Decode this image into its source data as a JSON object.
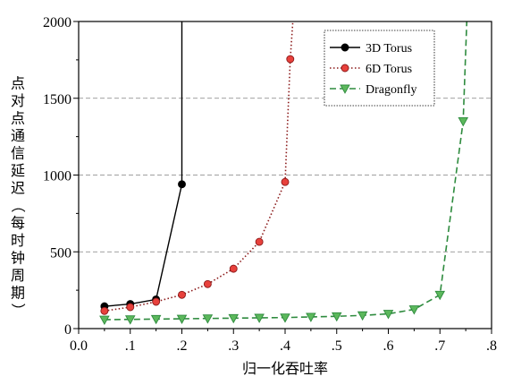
{
  "chart_data": {
    "type": "line",
    "title": "",
    "xlabel": "归一化吞吐率",
    "ylabel": "点对点通信延迟（每时钟周期）",
    "xlim": [
      0.0,
      0.8
    ],
    "ylim": [
      0,
      2000
    ],
    "x_ticks": [
      0.0,
      0.1,
      0.2,
      0.3,
      0.4,
      0.5,
      0.6,
      0.7,
      0.8
    ],
    "x_tick_labels": [
      "0.0",
      ".1",
      ".2",
      ".3",
      ".4",
      ".5",
      ".6",
      ".7",
      ".8"
    ],
    "y_ticks": [
      0,
      500,
      1000,
      1500,
      2000
    ],
    "y_tick_labels": [
      "0",
      "500",
      "1000",
      "1500",
      "2000"
    ],
    "grid": "horizontal dashed",
    "legend_position": "top-right",
    "series": [
      {
        "name": "3D Torus",
        "color": "#000000",
        "line_style": "solid",
        "marker": "circle",
        "marker_fill": "#000000",
        "x": [
          0.05,
          0.1,
          0.15,
          0.2
        ],
        "y": [
          145,
          160,
          190,
          940
        ],
        "curve_extension": [
          [
            0.2,
            940
          ],
          [
            0.2,
            2000
          ]
        ]
      },
      {
        "name": "6D Torus",
        "color": "#8b1a1a",
        "line_style": "dotted",
        "marker": "circle",
        "marker_fill": "#e8413c",
        "x": [
          0.05,
          0.1,
          0.15,
          0.2,
          0.25,
          0.3,
          0.35,
          0.4,
          0.41
        ],
        "y": [
          115,
          140,
          175,
          220,
          290,
          390,
          565,
          955,
          1755
        ],
        "curve_extension": [
          [
            0.41,
            1755
          ],
          [
            0.415,
            2000
          ]
        ]
      },
      {
        "name": "Dragonfly",
        "color": "#2e8b3e",
        "line_style": "dashed",
        "marker": "triangle-down",
        "marker_fill": "#5cb85c",
        "x": [
          0.05,
          0.1,
          0.15,
          0.2,
          0.25,
          0.3,
          0.35,
          0.4,
          0.45,
          0.5,
          0.55,
          0.6,
          0.65,
          0.7,
          0.745
        ],
        "y": [
          58,
          60,
          62,
          64,
          66,
          68,
          70,
          72,
          76,
          80,
          86,
          96,
          125,
          220,
          1350
        ],
        "curve_extension": [
          [
            0.745,
            1350
          ],
          [
            0.752,
            2000
          ]
        ]
      }
    ]
  }
}
